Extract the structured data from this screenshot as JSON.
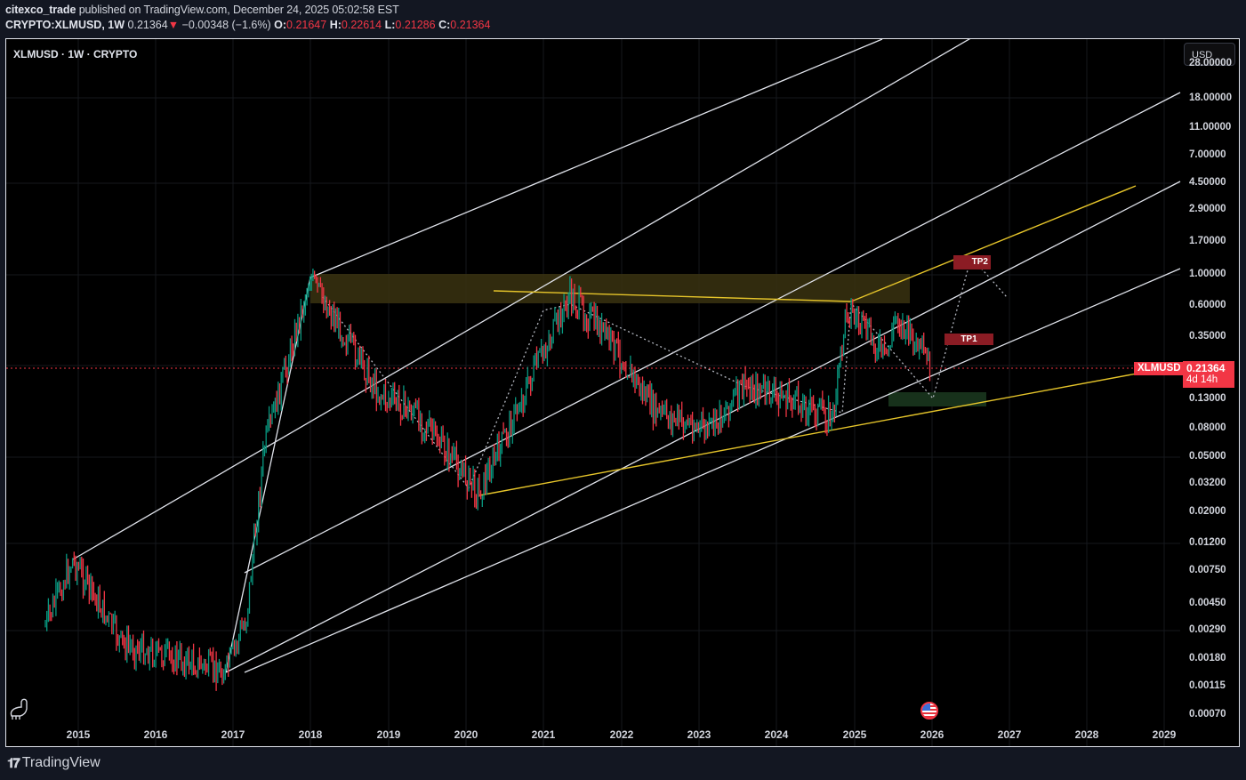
{
  "header": {
    "author": "citexco_trade",
    "published_text": "published on TradingView.com, December 24, 2025 05:02:58 EST",
    "symbol_full": "CRYPTO:XLMUSD, 1W",
    "last": "0.21364",
    "change_arrow": "▼",
    "change": "−0.00348 (−1.6%)",
    "open_label": "O:",
    "open": "0.21647",
    "high_label": "H:",
    "high": "0.22614",
    "low_label": "L:",
    "low": "0.21286",
    "close_label": "C:",
    "close": "0.21364"
  },
  "chart": {
    "legend": "XLMUSD · 1W · CRYPTO",
    "currency_button": "USD",
    "price_tag": {
      "symbol": "XLMUSD",
      "price": "0.21364",
      "countdown": "4d 14h"
    },
    "targets": {
      "tp1": "TP1",
      "tp2": "TP2"
    },
    "colors": {
      "up": "#089981",
      "down": "#f23645",
      "channel": "#e0e3eb",
      "trend": "#e5c42a",
      "resistance_zone": "#3a3310",
      "support_zone": "#17311b",
      "tp": "#8b1c24"
    }
  },
  "footer": {
    "brand": "TradingView"
  },
  "chart_data": {
    "type": "candlestick",
    "title": "XLMUSD · 1W · CRYPTO",
    "scale": "log",
    "ylabel": "USD",
    "y_ticks": [
      "28.00000",
      "18.00000",
      "11.00000",
      "7.00000",
      "4.50000",
      "2.90000",
      "1.70000",
      "1.00000",
      "0.60000",
      "0.35000",
      "0.13000",
      "0.08000",
      "0.05000",
      "0.03200",
      "0.02000",
      "0.01200",
      "0.00750",
      "0.00450",
      "0.00290",
      "0.00180",
      "0.00115",
      "0.00070"
    ],
    "x_ticks": [
      "2015",
      "2016",
      "2017",
      "2018",
      "2019",
      "2020",
      "2021",
      "2022",
      "2023",
      "2024",
      "2025",
      "2026",
      "2027",
      "2028",
      "2029"
    ],
    "current_price": 0.21364,
    "approx_path": [
      {
        "date": "2014-10",
        "price": 0.003
      },
      {
        "date": "2014-12",
        "price": 0.009
      },
      {
        "date": "2016-12",
        "price": 0.0016
      },
      {
        "date": "2018-01",
        "price": 0.9
      },
      {
        "date": "2020-03",
        "price": 0.03
      },
      {
        "date": "2021-05",
        "price": 0.75
      },
      {
        "date": "2024-06",
        "price": 0.085
      },
      {
        "date": "2024-12",
        "price": 0.63
      },
      {
        "date": "2025-07",
        "price": 0.5
      },
      {
        "date": "2025-12",
        "price": 0.21364
      }
    ],
    "annotations": [
      {
        "type": "zone",
        "label": "resistance",
        "from": 0.62,
        "to": 0.95
      },
      {
        "type": "zone",
        "label": "support",
        "from": 0.115,
        "to": 0.15
      },
      {
        "type": "target",
        "label": "TP1",
        "price": 0.33
      },
      {
        "type": "target",
        "label": "TP2",
        "price": 1.2
      }
    ]
  }
}
